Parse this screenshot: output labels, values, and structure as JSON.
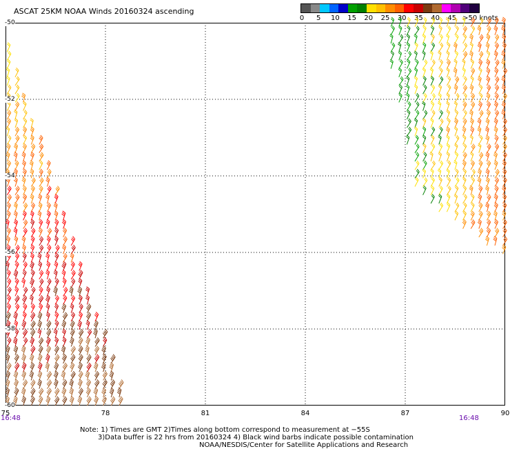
{
  "title": "ASCAT 25KM NOAA Winds 20160324 ascending",
  "colorbar": {
    "colors": [
      "#555555",
      "#888888",
      "#00c8ff",
      "#0064ff",
      "#0000c8",
      "#00a000",
      "#008000",
      "#ffe000",
      "#ffc000",
      "#ff8c00",
      "#ff6000",
      "#ff0000",
      "#c80000",
      "#7a3a10",
      "#b06a30",
      "#ff00ff",
      "#b000b0",
      "#50007a",
      "#200040"
    ],
    "labels": [
      "0",
      "5",
      "10",
      "15",
      "20",
      "25",
      "30",
      "35",
      "40",
      "45",
      ">50 knots"
    ]
  },
  "chart_data": {
    "type": "wind-barbs",
    "xlabel": "",
    "ylabel": "",
    "x_ticks": [
      "75",
      "78",
      "81",
      "84",
      "87",
      "90"
    ],
    "y_ticks": [
      "-50",
      "-52",
      "-54",
      "-56",
      "-58",
      "-60"
    ],
    "xlim": [
      75,
      90
    ],
    "ylim": [
      -60,
      -50
    ],
    "grid": true,
    "swaths": [
      {
        "name": "west",
        "polygon": [
          [
            75,
            -50.5
          ],
          [
            78.6,
            -60
          ],
          [
            75,
            -60
          ]
        ],
        "speed_range_knots": [
          20,
          40
        ]
      },
      {
        "name": "east",
        "polygon": [
          [
            86.5,
            -50
          ],
          [
            90,
            -50
          ],
          [
            90,
            -56.2
          ],
          [
            87.3,
            -54.5
          ],
          [
            86.5,
            -50.9
          ]
        ],
        "speed_range_knots": [
          15,
          30
        ]
      }
    ]
  },
  "time_labels": {
    "left": "16:48",
    "right": "16:48"
  },
  "notes": {
    "line1": "Note: 1) Times are GMT 2)Times along bottom correspond to measurement at −55S",
    "line2": "3)Data buffer is 22 hrs from 20160324 4) Black wind barbs indicate possible contamination",
    "line3": "NOAA/NESDIS/Center for Satellite Applications and Research"
  }
}
